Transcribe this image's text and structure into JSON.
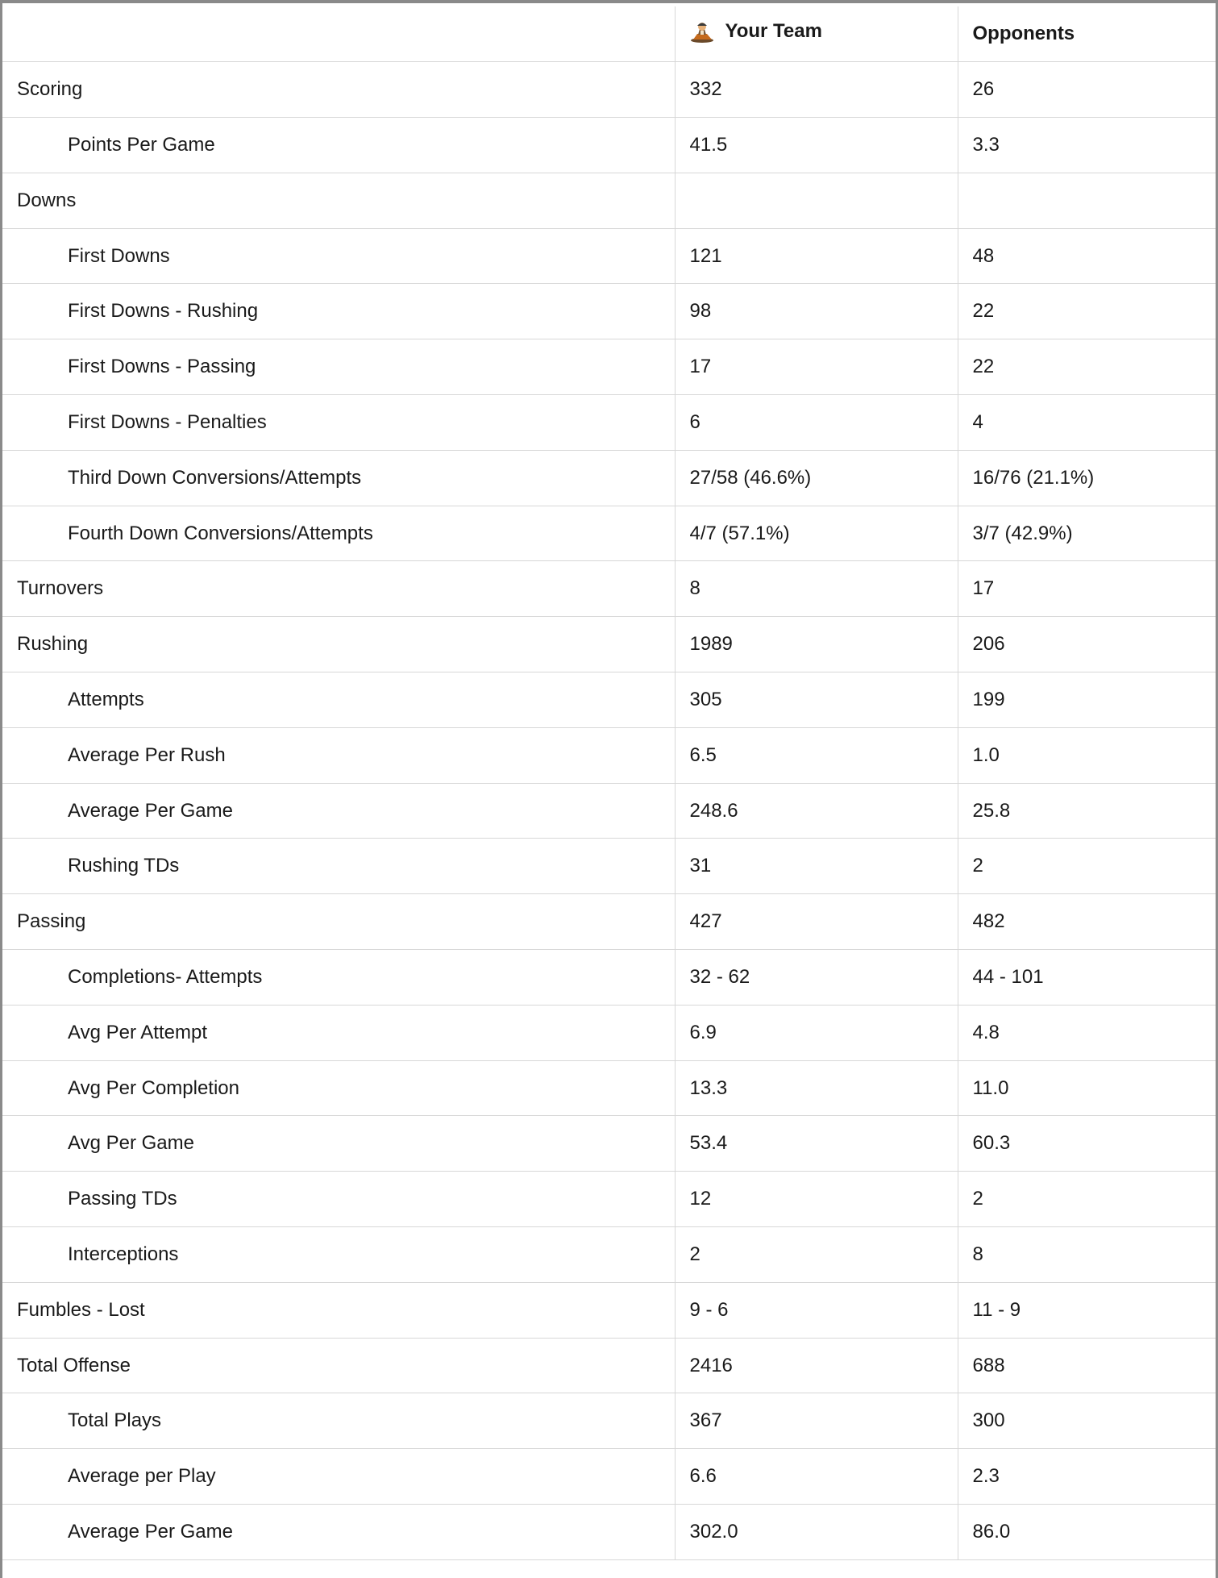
{
  "header": {
    "label_col": "",
    "team_col": "Your Team",
    "opp_col": "Opponents",
    "team_logo_icon": "team-mascot-icon"
  },
  "rows": [
    {
      "label": "Scoring",
      "team": "332",
      "opp": "26",
      "indent": false
    },
    {
      "label": "Points Per Game",
      "team": "41.5",
      "opp": "3.3",
      "indent": true
    },
    {
      "label": "Downs",
      "team": "",
      "opp": "",
      "indent": false
    },
    {
      "label": "First Downs",
      "team": "121",
      "opp": "48",
      "indent": true
    },
    {
      "label": "First Downs - Rushing",
      "team": "98",
      "opp": "22",
      "indent": true
    },
    {
      "label": "First Downs - Passing",
      "team": "17",
      "opp": "22",
      "indent": true
    },
    {
      "label": "First Downs - Penalties",
      "team": "6",
      "opp": "4",
      "indent": true
    },
    {
      "label": "Third Down Conversions/Attempts",
      "team": "27/58 (46.6%)",
      "opp": "16/76 (21.1%)",
      "indent": true
    },
    {
      "label": "Fourth Down Conversions/Attempts",
      "team": "4/7 (57.1%)",
      "opp": "3/7 (42.9%)",
      "indent": true
    },
    {
      "label": "Turnovers",
      "team": "8",
      "opp": "17",
      "indent": false
    },
    {
      "label": "Rushing",
      "team": "1989",
      "opp": "206",
      "indent": false
    },
    {
      "label": "Attempts",
      "team": "305",
      "opp": "199",
      "indent": true
    },
    {
      "label": "Average Per Rush",
      "team": "6.5",
      "opp": "1.0",
      "indent": true
    },
    {
      "label": "Average Per Game",
      "team": "248.6",
      "opp": "25.8",
      "indent": true
    },
    {
      "label": "Rushing TDs",
      "team": "31",
      "opp": "2",
      "indent": true
    },
    {
      "label": "Passing",
      "team": "427",
      "opp": "482",
      "indent": false
    },
    {
      "label": "Completions- Attempts",
      "team": "32 - 62",
      "opp": "44 - 101",
      "indent": true
    },
    {
      "label": "Avg Per Attempt",
      "team": "6.9",
      "opp": "4.8",
      "indent": true
    },
    {
      "label": "Avg Per Completion",
      "team": "13.3",
      "opp": "11.0",
      "indent": true
    },
    {
      "label": "Avg Per Game",
      "team": "53.4",
      "opp": "60.3",
      "indent": true
    },
    {
      "label": "Passing TDs",
      "team": "12",
      "opp": "2",
      "indent": true
    },
    {
      "label": "Interceptions",
      "team": "2",
      "opp": "8",
      "indent": true
    },
    {
      "label": "Fumbles - Lost",
      "team": "9 - 6",
      "opp": "11 - 9",
      "indent": false
    },
    {
      "label": "Total Offense",
      "team": "2416",
      "opp": "688",
      "indent": false
    },
    {
      "label": "Total Plays",
      "team": "367",
      "opp": "300",
      "indent": true
    },
    {
      "label": "Average per Play",
      "team": "6.6",
      "opp": "2.3",
      "indent": true
    },
    {
      "label": "Average Per Game",
      "team": "302.0",
      "opp": "86.0",
      "indent": true
    }
  ]
}
